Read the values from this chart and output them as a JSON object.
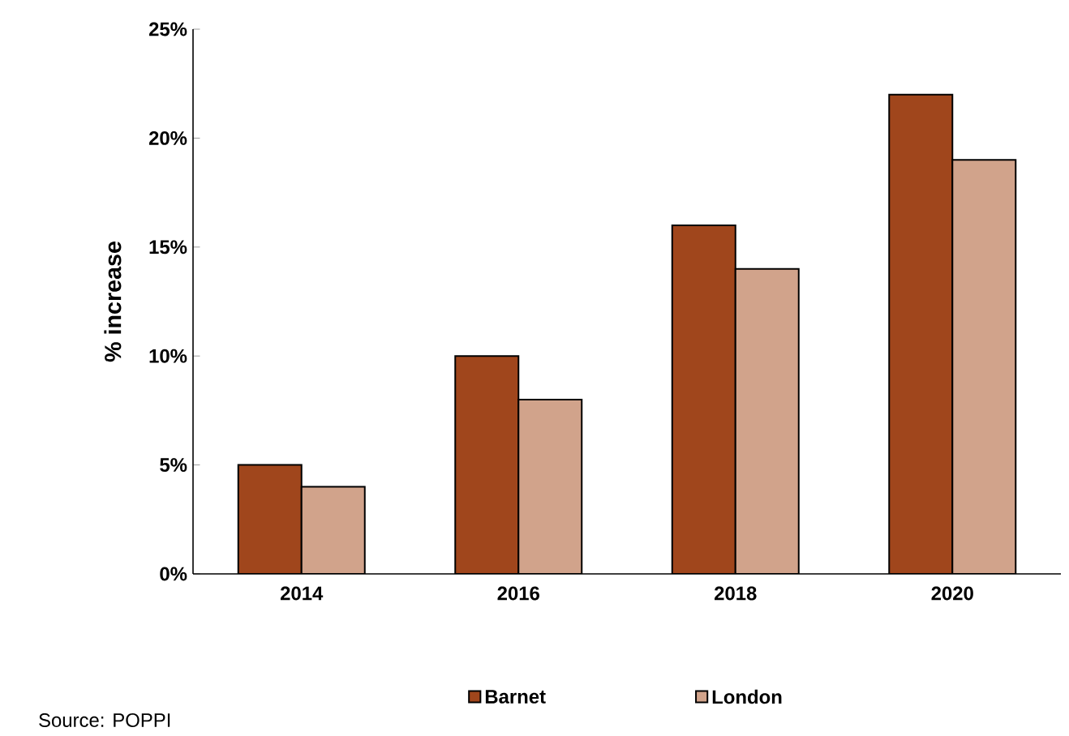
{
  "chart_data": {
    "type": "bar",
    "ylabel": "% increase",
    "categories": [
      "2014",
      "2016",
      "2018",
      "2020"
    ],
    "series": [
      {
        "name": "Barnet",
        "color": "#a0461c",
        "values": [
          5,
          10,
          16,
          22
        ]
      },
      {
        "name": "London",
        "color": "#d1a38b",
        "values": [
          4,
          8,
          14,
          19
        ]
      }
    ],
    "ylim": [
      0,
      25
    ],
    "yticks": [
      {
        "value": 0,
        "label": "0%"
      },
      {
        "value": 5,
        "label": "5%"
      },
      {
        "value": 10,
        "label": "10%"
      },
      {
        "value": 15,
        "label": "15%"
      },
      {
        "value": 20,
        "label": "20%"
      },
      {
        "value": 25,
        "label": "25%"
      }
    ],
    "legend": "bottom",
    "grid": false,
    "annotations": [
      "Source: POPPI"
    ]
  }
}
